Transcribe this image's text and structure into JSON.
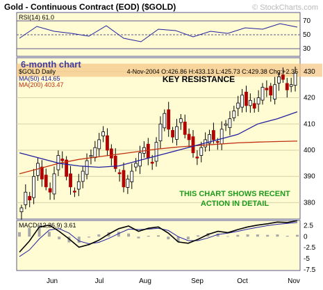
{
  "header": {
    "title": "Gold - Continuous Contract (EOD) ($GOLD)",
    "watermark": "© StockCharts.com"
  },
  "rsi_panel": {
    "label": "RSI(14) 61.0",
    "ticks": [
      "70",
      "50",
      "30"
    ]
  },
  "price_panel": {
    "period_label": "6-month chart",
    "symbol_label": "$GOLD Daily",
    "quote": "4-Nov-2004 O:426.86 H:433.13 L:425.73 C:429.38 Chg:+2.35",
    "ma50_label": "MA(50) 414.65",
    "ma200_label": "MA(200) 403.47",
    "resistance_label": "KEY RESISTANCE",
    "note_line1": "THIS CHART SHOWS RECENT",
    "note_line2": "ACTION IN DETAIL",
    "price_ticks": [
      "430",
      "420",
      "410",
      "400",
      "390",
      "380"
    ]
  },
  "macd_panel": {
    "label": "MACD(12,26,9) 3.61",
    "ticks": [
      "2.5",
      "0",
      "-2.5",
      "-5",
      "-7.5"
    ]
  },
  "x_axis": {
    "months": [
      "Jun",
      "Jul",
      "Aug",
      "Sep",
      "Oct",
      "Nov"
    ]
  },
  "colors": {
    "panel_background": "#fffbd2",
    "frame": "#5a5a8a",
    "up_candle": "#ffffff",
    "down_candle": "#b00000",
    "ma50": "#2020a0",
    "ma200": "#c03010",
    "resistance_band": "#f5c88a",
    "note_text": "#1c9a1c",
    "period_label": "#3c3ca0"
  },
  "chart_data": [
    {
      "type": "line",
      "name": "RSI(14)",
      "ylim": [
        20,
        80
      ],
      "reference_lines": [
        70,
        50,
        30
      ],
      "x": [
        "2004-05-18",
        "2004-05-28",
        "2004-06-08",
        "2004-06-18",
        "2004-06-30",
        "2004-07-12",
        "2004-07-22",
        "2004-08-02",
        "2004-08-12",
        "2004-08-24",
        "2004-09-03",
        "2004-09-15",
        "2004-09-27",
        "2004-10-07",
        "2004-10-19",
        "2004-10-29",
        "2004-11-04"
      ],
      "values": [
        45,
        62,
        55,
        52,
        48,
        63,
        45,
        40,
        58,
        56,
        47,
        55,
        52,
        60,
        58,
        66,
        61
      ]
    },
    {
      "type": "candlestick",
      "name": "$GOLD Daily",
      "ylim": [
        374,
        435
      ],
      "grid": true,
      "series": [
        {
          "name": "MA(50)",
          "values": [
            399,
            397,
            395,
            394,
            393.5,
            394,
            396,
            398,
            400,
            402,
            404,
            406,
            410,
            412,
            414.65
          ]
        },
        {
          "name": "MA(200)",
          "values": [
            391,
            393,
            395,
            396.5,
            397.5,
            398.5,
            399.5,
            400.5,
            401.2,
            401.8,
            402.3,
            402.8,
            403.1,
            403.3,
            403.47
          ]
        }
      ],
      "x": [
        "2004-05-20",
        "2004-06-03",
        "2004-06-15",
        "2004-06-28",
        "2004-07-09",
        "2004-07-21",
        "2004-08-02",
        "2004-08-13",
        "2004-08-25",
        "2004-09-07",
        "2004-09-17",
        "2004-09-29",
        "2004-10-12",
        "2004-10-25",
        "2004-11-04"
      ],
      "close": [
        [
          378,
          384,
          381,
          390,
          395,
          389,
          386,
          384,
          391,
          398,
          396,
          390,
          386,
          384,
          388,
          392,
          396,
          398,
          401,
          404,
          407,
          400,
          397,
          393,
          391,
          386,
          389,
          392,
          395,
          399,
          401,
          397,
          395,
          403,
          410,
          414,
          408,
          405,
          409,
          412,
          406,
          404,
          399,
          397,
          401,
          404,
          406,
          404,
          403,
          408,
          410,
          412,
          415,
          418,
          421,
          417,
          419,
          416,
          420,
          424,
          423,
          421,
          425,
          428,
          427,
          423,
          425,
          429.38
        ]
      ],
      "annotations": [
        {
          "text": "KEY RESISTANCE",
          "y_range": [
            428,
            433
          ]
        },
        {
          "text": "THIS CHART SHOWS RECENT ACTION IN DETAIL"
        }
      ]
    },
    {
      "type": "line",
      "name": "MACD(12,26,9)",
      "ylim": [
        -7.5,
        3.5
      ],
      "series": [
        {
          "name": "MACD",
          "values": [
            -3.5,
            -1,
            2.2,
            2.6,
            1.2,
            -0.5,
            -2.4,
            -1.8,
            -0.8,
            0.6,
            1.8,
            2.4,
            1.2,
            1.9,
            2.2,
            0.8,
            -1.2,
            -1.5,
            -0.6,
            0.5,
            1.2,
            0.9,
            1.6,
            2.2,
            2.6,
            2.9,
            3.3,
            3.2,
            3.61
          ]
        },
        {
          "name": "Signal",
          "values": [
            -4.5,
            -3,
            -0.5,
            1.5,
            1.8,
            0.8,
            -1,
            -1.6,
            -1.3,
            -0.4,
            0.7,
            1.7,
            1.6,
            1.7,
            1.9,
            1.4,
            0,
            -0.9,
            -0.9,
            -0.3,
            0.5,
            0.8,
            1.2,
            1.7,
            2.1,
            2.5,
            2.8,
            3,
            3.2
          ]
        }
      ]
    }
  ]
}
